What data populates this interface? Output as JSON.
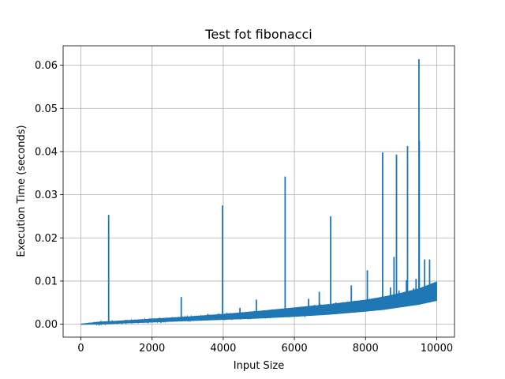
{
  "chart_data": {
    "type": "line",
    "title": "Test fot fibonacci",
    "xlabel": "Input Size",
    "ylabel": "Execution Time (seconds)",
    "xlim": [
      -500,
      10500
    ],
    "ylim": [
      -0.003,
      0.0645
    ],
    "xticks": [
      0,
      2000,
      4000,
      6000,
      8000,
      10000
    ],
    "xtick_labels": [
      "0",
      "2000",
      "4000",
      "6000",
      "8000",
      "10000"
    ],
    "yticks": [
      0.0,
      0.01,
      0.02,
      0.03,
      0.04,
      0.05,
      0.06
    ],
    "ytick_labels": [
      "0.00",
      "0.01",
      "0.02",
      "0.03",
      "0.04",
      "0.05",
      "0.06"
    ],
    "grid": true,
    "series": [
      {
        "color": "#1f77b4",
        "x": [
          0,
          500,
          1000,
          2000,
          3000,
          4000,
          5000,
          6000,
          7000,
          8000,
          8500,
          9000,
          9500,
          10000
        ],
        "y_low": [
          0.0,
          0.0,
          0.0002,
          0.0005,
          0.0008,
          0.0011,
          0.0014,
          0.0018,
          0.0023,
          0.003,
          0.0034,
          0.004,
          0.0046,
          0.0055
        ],
        "y_high": [
          0.0,
          0.0005,
          0.0007,
          0.0012,
          0.0017,
          0.0023,
          0.003,
          0.0038,
          0.0046,
          0.0056,
          0.0063,
          0.0072,
          0.0082,
          0.0098
        ],
        "spikes": [
          {
            "x": 780,
            "y": 0.0253
          },
          {
            "x": 2820,
            "y": 0.0063
          },
          {
            "x": 3980,
            "y": 0.0275
          },
          {
            "x": 4470,
            "y": 0.0038
          },
          {
            "x": 4930,
            "y": 0.0057
          },
          {
            "x": 5740,
            "y": 0.0342
          },
          {
            "x": 6400,
            "y": 0.0059
          },
          {
            "x": 6700,
            "y": 0.0075
          },
          {
            "x": 7020,
            "y": 0.025
          },
          {
            "x": 7600,
            "y": 0.009
          },
          {
            "x": 8050,
            "y": 0.0125
          },
          {
            "x": 8480,
            "y": 0.0398
          },
          {
            "x": 8700,
            "y": 0.0085
          },
          {
            "x": 8800,
            "y": 0.0156
          },
          {
            "x": 8870,
            "y": 0.0393
          },
          {
            "x": 9150,
            "y": 0.0102
          },
          {
            "x": 9180,
            "y": 0.0413
          },
          {
            "x": 9420,
            "y": 0.0105
          },
          {
            "x": 9500,
            "y": 0.0614
          },
          {
            "x": 9510,
            "y": 0.0425
          },
          {
            "x": 9660,
            "y": 0.015
          },
          {
            "x": 9800,
            "y": 0.015
          }
        ]
      }
    ]
  }
}
